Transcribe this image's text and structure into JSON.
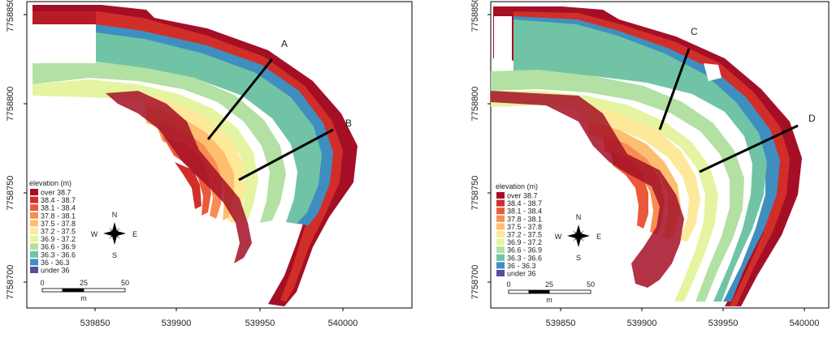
{
  "panels": [
    {
      "id": "left",
      "y_ticks": [
        "7758850",
        "7758800",
        "7758750",
        "7758700"
      ],
      "x_ticks": [
        "539850",
        "539900",
        "539950",
        "540000"
      ],
      "transects": [
        {
          "label": "A"
        },
        {
          "label": "B"
        }
      ]
    },
    {
      "id": "right",
      "y_ticks": [
        "7758850",
        "7758800",
        "7758750",
        "7758700"
      ],
      "x_ticks": [
        "539850",
        "539900",
        "539950",
        "540000"
      ],
      "transects": [
        {
          "label": "C"
        },
        {
          "label": "D"
        }
      ]
    }
  ],
  "legend": {
    "title": "elevation (m)",
    "items": [
      {
        "label": "over 38.7",
        "color": "#a50f26"
      },
      {
        "label": "38.4 - 38.7",
        "color": "#d22e29"
      },
      {
        "label": "38.1 - 38.4",
        "color": "#ea5a3a"
      },
      {
        "label": "37.8 - 38.1",
        "color": "#f88d52"
      },
      {
        "label": "37.5 - 37.8",
        "color": "#fdbe6f"
      },
      {
        "label": "37.2 - 37.5",
        "color": "#fee99a"
      },
      {
        "label": "36.9 - 37.2",
        "color": "#e5f4a0"
      },
      {
        "label": "36.6 - 36.9",
        "color": "#b3e0a3"
      },
      {
        "label": "36.3 - 36.6",
        "color": "#70c4a5"
      },
      {
        "label": "36 - 36.3",
        "color": "#3e8fbf"
      },
      {
        "label": "under 36",
        "color": "#5a4aa2"
      }
    ]
  },
  "compass": {
    "n": "N",
    "s": "S",
    "e": "E",
    "w": "W"
  },
  "scale_bar": {
    "ticks": [
      "0",
      "25",
      "50"
    ],
    "unit": "m"
  }
}
